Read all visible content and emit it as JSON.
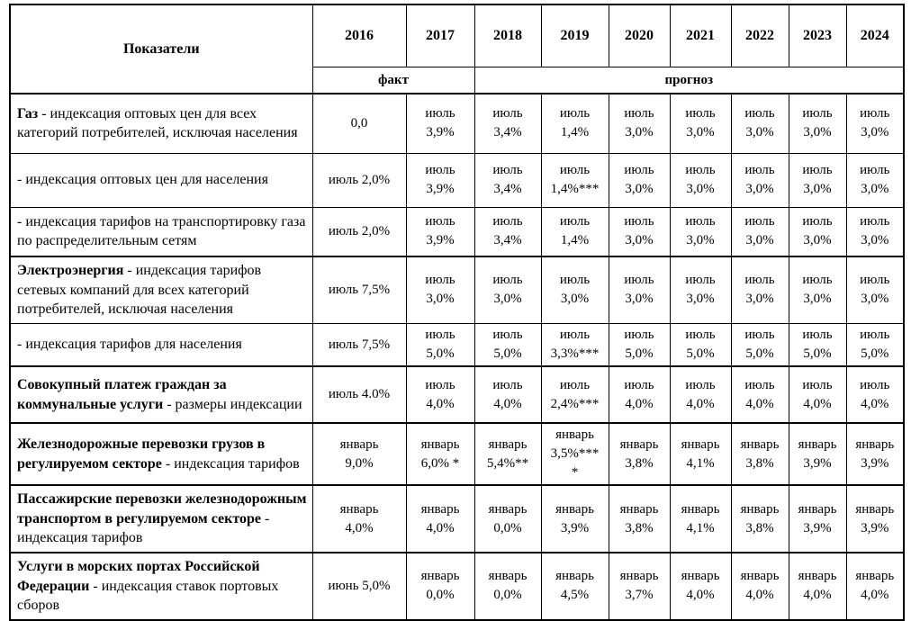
{
  "header": {
    "indicator_label": "Показатели",
    "years": [
      "2016",
      "2017",
      "2018",
      "2019",
      "2020",
      "2021",
      "2022",
      "2023",
      "2024"
    ],
    "fact_label": "факт",
    "forecast_label": "прогноз"
  },
  "rows": [
    {
      "label_bold": "Газ",
      "label_rest": " -  индексация оптовых цен для всех категорий потребителей, исключая населения",
      "thick_top": true,
      "cells": [
        [
          "0,0"
        ],
        [
          "июль",
          "3,9%"
        ],
        [
          "июль",
          "3,4%"
        ],
        [
          "июль",
          "1,4%"
        ],
        [
          "июль",
          "3,0%"
        ],
        [
          "июль",
          "3,0%"
        ],
        [
          "июль",
          "3,0%"
        ],
        [
          "июль",
          "3,0%"
        ],
        [
          "июль",
          "3,0%"
        ]
      ]
    },
    {
      "label_bold": "",
      "label_rest": "- индексация оптовых цен для населения",
      "thick_top": false,
      "cells": [
        [
          "июль 2,0%"
        ],
        [
          "июль",
          "3,9%"
        ],
        [
          "июль",
          "3,4%"
        ],
        [
          "июль",
          "1,4%***"
        ],
        [
          "июль",
          "3,0%"
        ],
        [
          "июль",
          "3,0%"
        ],
        [
          "июль",
          "3,0%"
        ],
        [
          "июль",
          "3,0%"
        ],
        [
          "июль",
          "3,0%"
        ]
      ]
    },
    {
      "label_bold": "",
      "label_rest": "- индексация тарифов на транспортировку газа по распределительным сетям",
      "thick_top": false,
      "cells": [
        [
          "июль 2,0%"
        ],
        [
          "июль",
          "3,9%"
        ],
        [
          "июль",
          "3,4%"
        ],
        [
          "июль",
          "1,4%"
        ],
        [
          "июль",
          "3,0%"
        ],
        [
          "июль",
          "3,0%"
        ],
        [
          "июль",
          "3,0%"
        ],
        [
          "июль",
          "3,0%"
        ],
        [
          "июль",
          "3,0%"
        ]
      ]
    },
    {
      "label_bold": "Электроэнергия",
      "label_rest": " -  индексация тарифов сетевых компаний для  всех категорий потребителей, исключая населения",
      "thick_top": true,
      "cells": [
        [
          "июль 7,5%"
        ],
        [
          "июль",
          "3,0%"
        ],
        [
          "июль",
          "3,0%"
        ],
        [
          "июль",
          "3,0%"
        ],
        [
          "июль",
          "3,0%"
        ],
        [
          "июль",
          "3,0%"
        ],
        [
          "июль",
          "3,0%"
        ],
        [
          "июль",
          "3,0%"
        ],
        [
          "июль",
          "3,0%"
        ]
      ]
    },
    {
      "label_bold": "",
      "label_rest": "-  индексация тарифов  для населения",
      "thick_top": false,
      "cells": [
        [
          "июль 7,5%"
        ],
        [
          "июль",
          "5,0%"
        ],
        [
          "июль",
          "5,0%"
        ],
        [
          "июль",
          "3,3%***"
        ],
        [
          "июль",
          "5,0%"
        ],
        [
          "июль",
          "5,0%"
        ],
        [
          "июль",
          "5,0%"
        ],
        [
          "июль",
          "5,0%"
        ],
        [
          "июль",
          "5,0%"
        ]
      ]
    },
    {
      "label_bold": "Совокупный платеж граждан за коммунальные услуги",
      "label_rest": " - размеры индексации",
      "thick_top": true,
      "cells": [
        [
          "июль 4.0%"
        ],
        [
          "июль",
          "4,0%"
        ],
        [
          "июль",
          "4,0%"
        ],
        [
          "июль",
          "2,4%***"
        ],
        [
          "июль",
          "4,0%"
        ],
        [
          "июль",
          "4,0%"
        ],
        [
          "июль",
          "4,0%"
        ],
        [
          "июль",
          "4,0%"
        ],
        [
          "июль",
          "4,0%"
        ]
      ]
    },
    {
      "label_bold": "Железнодорожные перевозки грузов в регулируемом секторе",
      "label_rest": " -  индексация тарифов",
      "thick_top": true,
      "cells": [
        [
          "январь",
          "9,0%"
        ],
        [
          "январь",
          "6,0% *"
        ],
        [
          "январь",
          "5,4%**"
        ],
        [
          "январь",
          "3,5%***",
          "*"
        ],
        [
          "январь",
          "3,8%"
        ],
        [
          "январь",
          "4,1%"
        ],
        [
          "январь",
          "3,8%"
        ],
        [
          "январь",
          "3,9%"
        ],
        [
          "январь",
          "3,9%"
        ]
      ]
    },
    {
      "label_bold": "Пассажирские перевозки железнодорожным транспортом  в регулируемом секторе",
      "label_rest": " - индексация тарифов",
      "thick_top": true,
      "cells": [
        [
          "январь",
          "4,0%"
        ],
        [
          "январь",
          "4,0%"
        ],
        [
          "январь",
          "0,0%"
        ],
        [
          "январь",
          "3,9%"
        ],
        [
          "январь",
          "3,8%"
        ],
        [
          "январь",
          "4,1%"
        ],
        [
          "январь",
          "3,8%"
        ],
        [
          "январь",
          "3,9%"
        ],
        [
          "январь",
          "3,9%"
        ]
      ]
    },
    {
      "label_bold": "Услуги в морских портах Российской Федерации",
      "label_rest": " - индексация ставок портовых сборов",
      "thick_top": true,
      "cells": [
        [
          "июнь 5,0%"
        ],
        [
          "январь",
          "0,0%"
        ],
        [
          "январь",
          "0,0%"
        ],
        [
          "январь",
          "4,5%"
        ],
        [
          "январь",
          "3,7%"
        ],
        [
          "январь",
          "4,0%"
        ],
        [
          "январь",
          "4,0%"
        ],
        [
          "январь",
          "4,0%"
        ],
        [
          "январь",
          "4,0%"
        ]
      ]
    }
  ]
}
